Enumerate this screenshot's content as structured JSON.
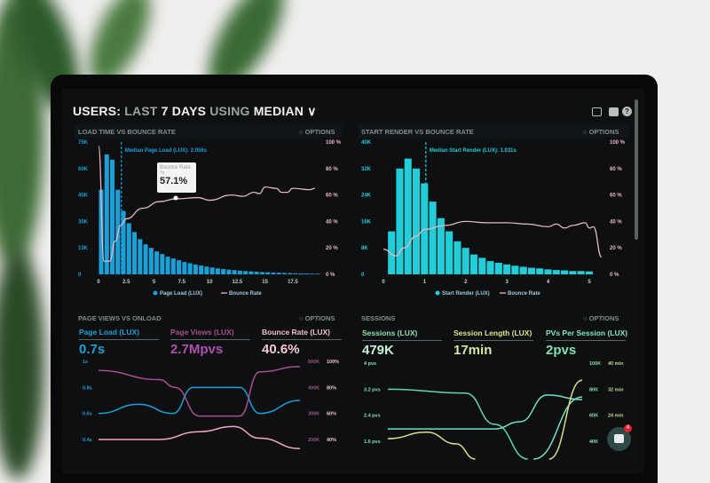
{
  "header": {
    "users": "USERS:",
    "last": "LAST",
    "days": "7 DAYS",
    "using": "USING",
    "median": "MEDIAN"
  },
  "toolbar_icons": [
    "monitor-icon",
    "share-icon",
    "help-icon"
  ],
  "options_label": "OPTIONS",
  "chat": {
    "badge": "4"
  },
  "colors": {
    "page_load": "#1a9fd8",
    "start_render": "#22cdd8",
    "bounce": "#e9b6c6",
    "page_views": "#a8508f",
    "sessions": "#5fd6ad",
    "session_length": "#d6df8f",
    "pvs": "#74e0bf"
  },
  "chart_data": [
    {
      "type": "bar+line",
      "title": "LOAD TIME VS BOUNCE RATE",
      "annotation": "Median Page Load (LUX): 2.056s",
      "median": 2.056,
      "bar_width": 0.5,
      "xlim": [
        0,
        19.7
      ],
      "x_ticks": [
        {
          "v": 0,
          "label": "0"
        },
        {
          "v": 2.5,
          "label": "2.5"
        },
        {
          "v": 5,
          "label": "5"
        },
        {
          "v": 7.5,
          "label": "7.5"
        },
        {
          "v": 10,
          "label": "10"
        },
        {
          "v": 12.5,
          "label": "12.5"
        },
        {
          "v": 15,
          "label": "15"
        },
        {
          "v": 17.5,
          "label": "17.5"
        }
      ],
      "ylim": [
        0,
        75000
      ],
      "y_ticks": [
        "0",
        "15K",
        "30K",
        "45K",
        "60K",
        "75K"
      ],
      "y2lim": [
        0,
        100
      ],
      "y2_ticks": [
        "0 %",
        "20 %",
        "40 %",
        "60 %",
        "80 %",
        "100 %"
      ],
      "bars": [
        48000,
        68000,
        65000,
        48000,
        36000,
        29000,
        24000,
        20000,
        17000,
        15000,
        13000,
        11500,
        10000,
        9000,
        8000,
        7000,
        6300,
        5600,
        5000,
        4400,
        3900,
        3400,
        3000,
        2700,
        2400,
        2100,
        1900,
        1700,
        1500,
        1300,
        1200,
        1000,
        900,
        800,
        700,
        600,
        500,
        500,
        400,
        400
      ],
      "line": [
        [
          0,
          97
        ],
        [
          0.5,
          10
        ],
        [
          1,
          10
        ],
        [
          1.5,
          25
        ],
        [
          2,
          37
        ],
        [
          2.5,
          42
        ],
        [
          4,
          50
        ],
        [
          5.5,
          55
        ],
        [
          7,
          57.1
        ],
        [
          9,
          58
        ],
        [
          10,
          56
        ],
        [
          12,
          60
        ],
        [
          13,
          59
        ],
        [
          14,
          62
        ],
        [
          14.5,
          61
        ],
        [
          15,
          66
        ],
        [
          16,
          65
        ],
        [
          16.5,
          62
        ],
        [
          17,
          62
        ],
        [
          17.5,
          65
        ],
        [
          19,
          64
        ],
        [
          19.5,
          65
        ]
      ],
      "legend": [
        "Page Load (LUX)",
        "Bounce Rate"
      ],
      "tooltip": {
        "label": "Bounce Rate",
        "sub": "7s",
        "value": "57.1%"
      }
    },
    {
      "type": "bar+line",
      "title": "START RENDER VS BOUNCE RATE",
      "annotation": "Median Start Render (LUX): 1.031s",
      "median": 1.031,
      "bar_width": 0.2,
      "xlim": [
        0,
        5.13
      ],
      "x_ticks": [
        {
          "v": 0,
          "label": "0"
        },
        {
          "v": 1,
          "label": "1"
        },
        {
          "v": 2,
          "label": "2"
        },
        {
          "v": 3,
          "label": "3"
        },
        {
          "v": 4,
          "label": "4"
        },
        {
          "v": 5,
          "label": "5"
        }
      ],
      "ylim": [
        0,
        40000
      ],
      "y_ticks": [
        "0",
        "8K",
        "16K",
        "24K",
        "32K",
        "40K"
      ],
      "y2lim": [
        0,
        100
      ],
      "y2_ticks": [
        "0 %",
        "20 %",
        "40 %",
        "60 %",
        "80 %",
        "100 %"
      ],
      "bars": [
        13000,
        32000,
        35000,
        32000,
        27500,
        22000,
        17000,
        13000,
        10000,
        8000,
        6000,
        5000,
        4000,
        3500,
        3000,
        2600,
        2300,
        2000,
        1800,
        1500,
        1300,
        1200,
        1000,
        1000,
        900
      ],
      "bar_start": 0.1,
      "line": [
        [
          0,
          19
        ],
        [
          0.3,
          14
        ],
        [
          0.5,
          20
        ],
        [
          0.8,
          29
        ],
        [
          1,
          34
        ],
        [
          1.5,
          37
        ],
        [
          2,
          40
        ],
        [
          2.5,
          39
        ],
        [
          3,
          39
        ],
        [
          3.5,
          38
        ],
        [
          4,
          36
        ],
        [
          4.2,
          38
        ],
        [
          4.4,
          35
        ],
        [
          4.6,
          37
        ],
        [
          4.9,
          39
        ],
        [
          5,
          35
        ],
        [
          5.1,
          36
        ],
        [
          5.3,
          13
        ]
      ],
      "legend": [
        "Start Render (LUX)",
        "Bounce Rate"
      ]
    },
    {
      "type": "line",
      "title": "PAGE VIEWS VS ONLOAD",
      "metrics": [
        {
          "label": "Page Load (LUX)",
          "value": "0.7s"
        },
        {
          "label": "Page Views (LUX)",
          "value": "2.7Mpvs"
        },
        {
          "label": "Bounce Rate (LUX)",
          "value": "40.6%"
        }
      ],
      "y_ticks": [
        "1s",
        "0.8s",
        "0.6s",
        "0.4s"
      ],
      "y2_ticks": [
        "500K",
        "400K",
        "300K",
        "200K"
      ],
      "y3_ticks": [
        "100%",
        "80%",
        "60%",
        "40%"
      ],
      "series": [
        {
          "axis": "seconds",
          "lim": [
            0.4,
            1
          ],
          "points": [
            [
              0,
              0.6
            ],
            [
              0.2,
              0.67
            ],
            [
              0.37,
              0.6
            ],
            [
              0.47,
              0.8
            ],
            [
              0.7,
              0.8
            ],
            [
              0.8,
              0.6
            ],
            [
              1,
              0.7
            ]
          ]
        },
        {
          "axis": "page views (K)",
          "lim": [
            200,
            500
          ],
          "points": [
            [
              0,
              465
            ],
            [
              0.3,
              430
            ],
            [
              0.38,
              400
            ],
            [
              0.5,
              290
            ],
            [
              0.7,
              290
            ],
            [
              0.8,
              460
            ],
            [
              1,
              480
            ]
          ]
        },
        {
          "axis": "percent",
          "lim": [
            40,
            100
          ],
          "points": [
            [
              0,
              40
            ],
            [
              0.3,
              40
            ],
            [
              0.5,
              46
            ],
            [
              0.67,
              50
            ],
            [
              0.8,
              41
            ],
            [
              1,
              33
            ]
          ]
        }
      ]
    },
    {
      "type": "line",
      "title": "SESSIONS",
      "metrics": [
        {
          "label": "Sessions (LUX)",
          "value": "479K"
        },
        {
          "label": "Session Length (LUX)",
          "value": "17min"
        },
        {
          "label": "PVs Per Session (LUX)",
          "value": "2pvs"
        }
      ],
      "y_ticks": [
        "4 pvs",
        "3.2 pvs",
        "2.4 pvs",
        "1.6 pvs"
      ],
      "y2_ticks": [
        "100K",
        "80K",
        "60K",
        "40K"
      ],
      "y3_ticks": [
        "40 min",
        "32 min",
        "24 min"
      ],
      "series": [
        {
          "axis": "sessions (K)",
          "lim": [
            40,
            100
          ],
          "points": [
            [
              0,
              80
            ],
            [
              0.4,
              77
            ],
            [
              0.55,
              53
            ],
            [
              0.72,
              20
            ]
          ]
        },
        {
          "axis": "sessions (K)",
          "lim": [
            40,
            100
          ],
          "points": [
            [
              0,
              49.5
            ],
            [
              0.55,
              49.5
            ],
            [
              0.68,
              55
            ],
            [
              0.82,
              75.5
            ],
            [
              1,
              72
            ]
          ]
        },
        {
          "axis": "sessions (K)",
          "lim": [
            40,
            100
          ],
          "points": [
            [
              0,
              42
            ],
            [
              0.2,
              47
            ],
            [
              0.35,
              38
            ],
            [
              0.45,
              20
            ]
          ]
        },
        {
          "axis": "sessions (K)",
          "lim": [
            40,
            100
          ],
          "points": [
            [
              0.75,
              20
            ],
            [
              1,
              74
            ]
          ]
        },
        {
          "axis": "sessions (K)",
          "lim": [
            40,
            100
          ],
          "points": [
            [
              0.83,
              20
            ],
            [
              1,
              87
            ]
          ]
        }
      ]
    }
  ]
}
